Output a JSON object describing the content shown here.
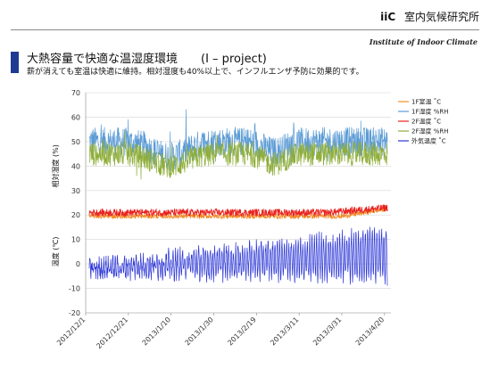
{
  "header": {
    "logo": "iiC",
    "org": "室内気候研究所",
    "institute": "Institute of Indoor Climate"
  },
  "slide": {
    "title": "大熱容量で快適な温湿度環境",
    "project": "(I – project)",
    "subtitle": "薪が消えても室温は快適に維持。相対湿度も40%以上で、インフルエンザ予防に効果的です。"
  },
  "colors": {
    "accent": "#1f3a93",
    "f1_temp": "#f28c28",
    "f1_rh": "#5b9bd5",
    "f2_temp": "#e8211d",
    "f2_rh": "#8fae3a",
    "outdoor": "#2b35d6"
  },
  "chart_data": {
    "type": "line",
    "xlabel_rotated": true,
    "x_ticks": [
      "2012/12/1",
      "2012/12/21",
      "2013/1/10",
      "2013/1/30",
      "2013/2/19",
      "2013/3/11",
      "2013/3/31",
      "2013/4/20"
    ],
    "x_start": "2012/12/1",
    "x_end": "2013/4/23",
    "ylim": [
      -20,
      70
    ],
    "y_ticks": [
      -20,
      -10,
      0,
      10,
      20,
      30,
      40,
      50,
      60,
      70
    ],
    "ylabel_upper": "相対湿度 (%)",
    "ylabel_lower": "温度 (℃)",
    "grid": "horizontal",
    "legend_position": "top-right",
    "series": [
      {
        "name": "1F室温 ˚C",
        "color_key": "f1_temp",
        "approx_level": 20,
        "noise": 1.2
      },
      {
        "name": "1F湿度 %RH",
        "color_key": "f1_rh",
        "approx_level": 50,
        "noise": 6
      },
      {
        "name": "2F温度 ˚C",
        "color_key": "f2_temp",
        "approx_level": 21,
        "noise": 1.5
      },
      {
        "name": "2F湿度 %RH",
        "color_key": "f2_rh",
        "approx_level": 45,
        "noise": 5
      },
      {
        "name": "外気温度 ˚C",
        "color_key": "outdoor",
        "approx_level": 0,
        "noise": 6
      }
    ]
  }
}
